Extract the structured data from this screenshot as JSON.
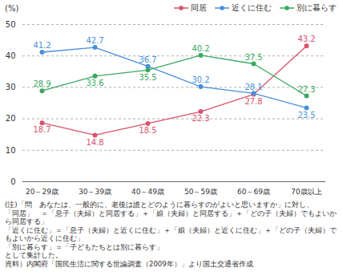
{
  "chart_data": {
    "type": "line",
    "y_label": "(%)",
    "categories": [
      "20～29歳",
      "30～39歳",
      "40～49歳",
      "50～59歳",
      "60～69歳",
      "70歳以上"
    ],
    "series": [
      {
        "name": "同居",
        "color": "#d9536b",
        "values": [
          18.7,
          14.8,
          18.5,
          22.3,
          27.8,
          43.2
        ]
      },
      {
        "name": "近くに住む",
        "color": "#4a90d9",
        "values": [
          41.2,
          42.7,
          36.7,
          30.2,
          28.1,
          23.5
        ]
      },
      {
        "name": "別に暮らす",
        "color": "#3aa860",
        "values": [
          28.9,
          33.6,
          35.5,
          40.2,
          37.5,
          27.3
        ]
      }
    ],
    "ylim": [
      0,
      50
    ],
    "yticks": [
      0,
      10,
      20,
      30,
      40,
      50
    ],
    "grid": true,
    "legend": "top-right",
    "data_labels": true,
    "marker": "circle",
    "annotations": [
      "(注)「問　あなたは、一般的に、老後は誰とどのように暮らすのがよいと思いますか」に対し、",
      "「同居」　＝「息子（夫婦）と同居する」＋「娘（夫婦）と同居する」＋「どの子（夫婦）でもよいから同居する」",
      "「近くに住む」＝「息子（夫婦）と近くに住む」＋「娘（夫婦）と近くに住む」＋「どの子（夫婦）でもよいから近くに住む」",
      "「別に暮らす」＝「子どもたちとは別に暮らす」",
      "として集計した。",
      "資料）内閣府「国民生活に関する世論調査（2009年）」より国土交通省作成"
    ]
  }
}
